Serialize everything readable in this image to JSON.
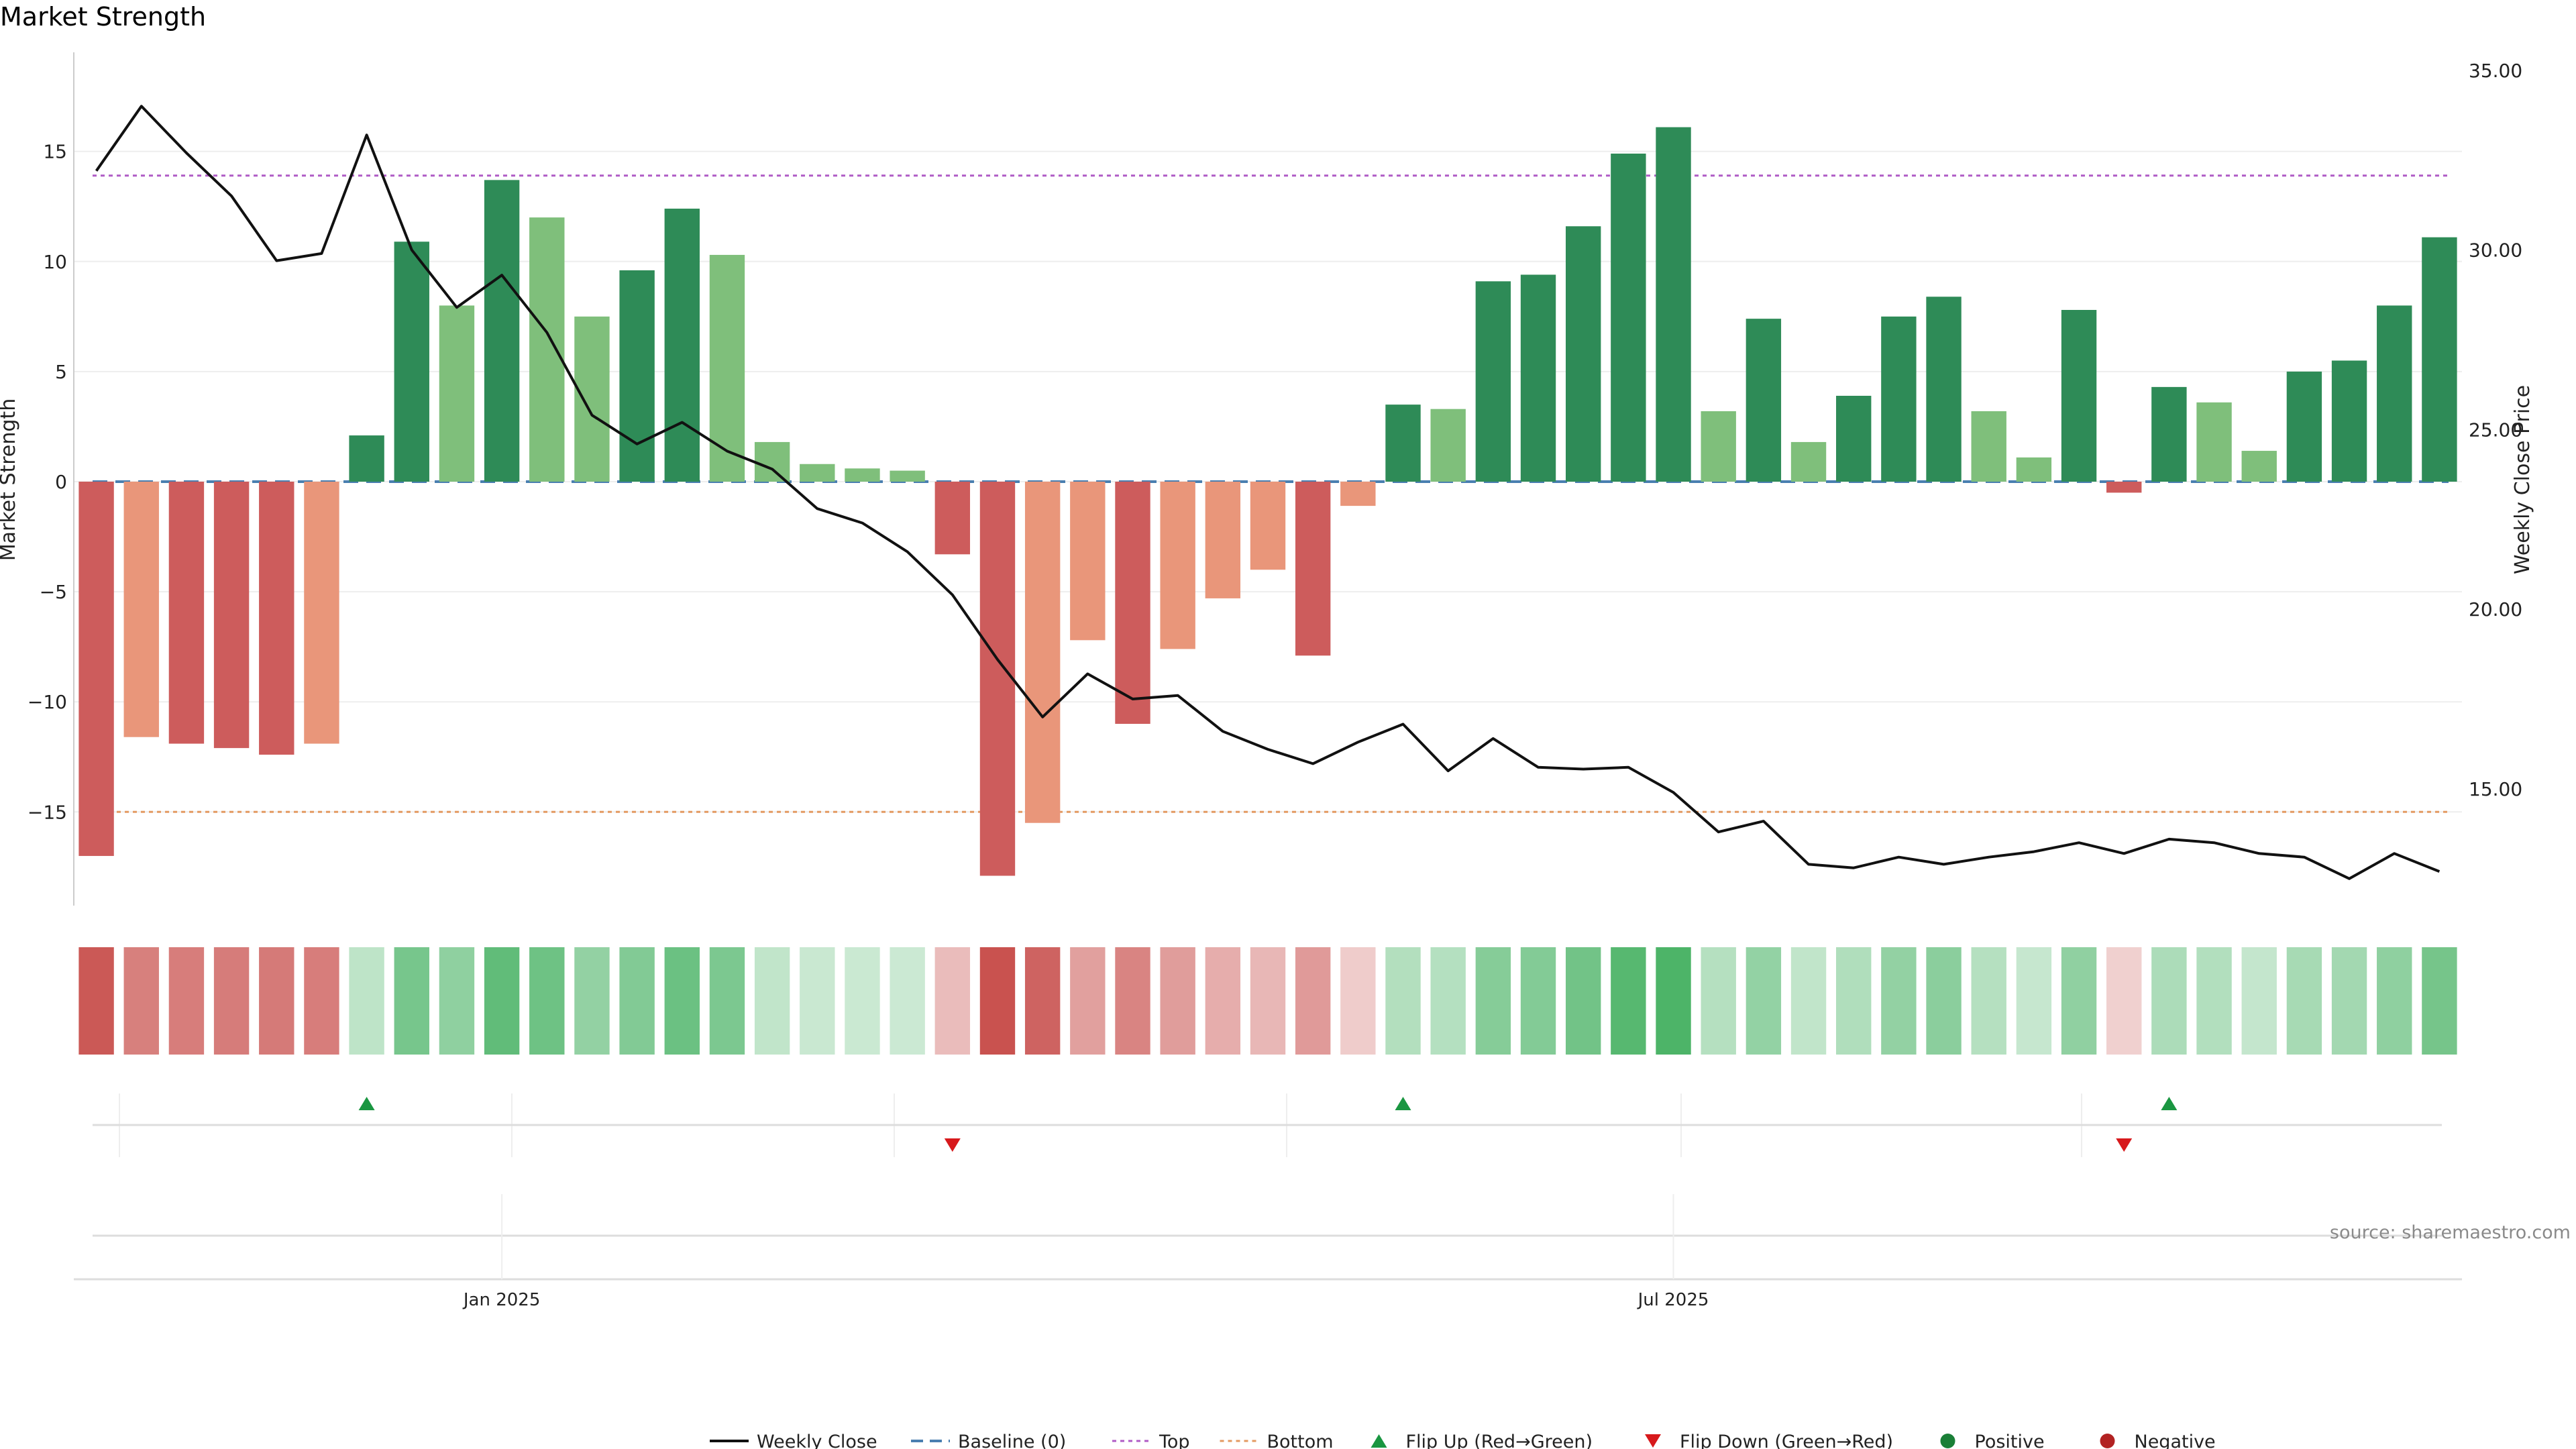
{
  "chart_data": {
    "type": "bar",
    "title": "Market Strength",
    "y_left_label": "Market Strength",
    "y_right_label": "Weekly Close Price",
    "y_left_range": [
      -19.5,
      19.5
    ],
    "y_left_ticks": [
      "15",
      "10",
      "5",
      "0",
      "−5",
      "−10",
      "−15"
    ],
    "y_left_tick_values": [
      15,
      10,
      5,
      0,
      -5,
      -10,
      -15
    ],
    "y_right_range": [
      11.6,
      35.5
    ],
    "y_right_ticks": [
      "35.00",
      "30.00",
      "25.00",
      "20.00",
      "15.00"
    ],
    "y_right_tick_values": [
      35,
      30,
      25,
      20,
      15
    ],
    "x_ticks": [
      {
        "label": "Jan 2025",
        "week": 9.5
      },
      {
        "label": "Jul 2025",
        "week": 35.5
      }
    ],
    "baseline": 0,
    "top_level": 13.9,
    "bottom_level": -15.0,
    "market_strength": [
      -17.0,
      -11.6,
      -11.9,
      -12.1,
      -12.4,
      -11.9,
      2.1,
      10.9,
      8.0,
      13.7,
      12.0,
      7.5,
      9.6,
      12.4,
      10.3,
      1.8,
      0.8,
      0.6,
      0.5,
      -3.3,
      -17.9,
      -15.5,
      -7.2,
      -11.0,
      -7.6,
      -5.3,
      -4.0,
      -7.9,
      -1.1,
      3.5,
      3.3,
      9.1,
      9.4,
      11.6,
      14.9,
      16.1,
      3.2,
      7.4,
      1.8,
      3.9,
      7.5,
      8.4,
      3.2,
      1.1,
      7.8,
      -0.5,
      4.3,
      3.6,
      1.4,
      5.0,
      5.5,
      8.0,
      11.1
    ],
    "weekly_close": [
      32.2,
      34.0,
      32.7,
      31.5,
      29.7,
      29.9,
      33.2,
      30.0,
      28.4,
      29.3,
      27.7,
      25.4,
      24.6,
      25.2,
      24.4,
      23.9,
      22.8,
      22.4,
      21.6,
      20.4,
      18.6,
      17.0,
      18.2,
      17.5,
      17.6,
      16.6,
      16.1,
      15.7,
      16.3,
      16.8,
      15.5,
      16.4,
      15.6,
      15.55,
      15.6,
      14.9,
      13.8,
      14.1,
      12.9,
      12.8,
      13.1,
      12.9,
      13.1,
      13.25,
      13.5,
      13.2,
      13.6,
      13.5,
      13.2,
      13.1,
      12.5,
      13.2,
      12.7
    ],
    "flip_up_weeks": [
      6,
      29,
      46
    ],
    "flip_down_weeks": [
      19,
      45
    ],
    "colors": {
      "strong_positive": "#2e8b57",
      "weak_positive": "#7fbf7b",
      "strong_negative": "#cd5c5c",
      "weak_negative": "#e9967a",
      "close_line": "#111111",
      "baseline": "#4a7fb0",
      "top": "#b05cc6",
      "bottom": "#e39a62",
      "flip_up": "#1a9641",
      "flip_down": "#d7191c",
      "positive_dot": "#1a7f37",
      "negative_dot": "#b22222"
    },
    "legend": [
      {
        "label": "Weekly Close",
        "kind": "line",
        "color": "#111111"
      },
      {
        "label": "Baseline (0)",
        "kind": "dashed",
        "color": "#4a7fb0"
      },
      {
        "label": "Top",
        "kind": "dotted",
        "color": "#b05cc6"
      },
      {
        "label": "Bottom",
        "kind": "dotted",
        "color": "#e39a62"
      },
      {
        "label": "Flip Up (Red→Green)",
        "kind": "tri-up",
        "color": "#1a9641"
      },
      {
        "label": "Flip Down (Green→Red)",
        "kind": "tri-down",
        "color": "#d7191c"
      },
      {
        "label": "Positive",
        "kind": "dot",
        "color": "#1a7f37"
      },
      {
        "label": "Negative",
        "kind": "dot",
        "color": "#b22222"
      }
    ],
    "source": "source: sharemaestro.com"
  }
}
